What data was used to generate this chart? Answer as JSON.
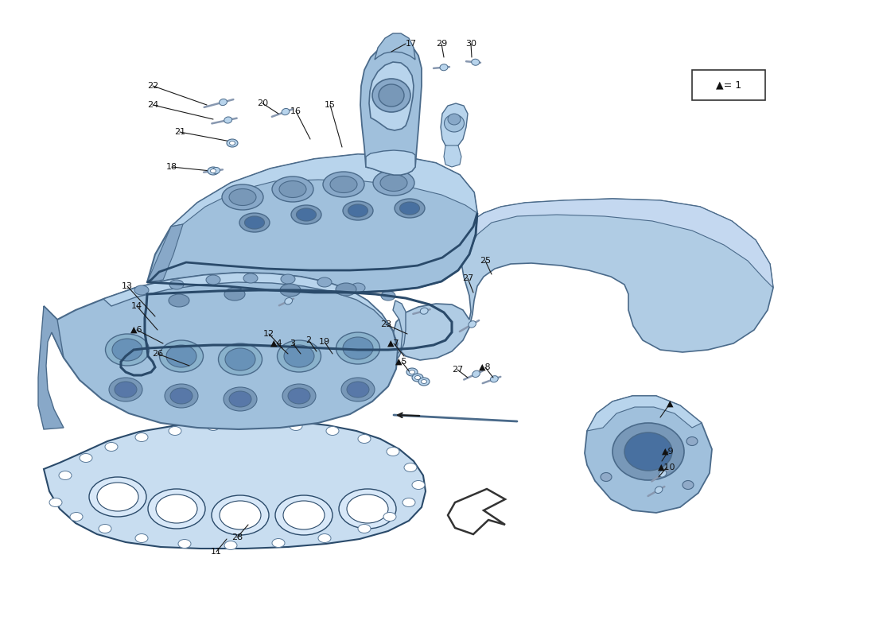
{
  "bg_color": "#ffffff",
  "part_color_light": "#b8d4ec",
  "part_color_mid": "#a0c0dc",
  "part_color_dark": "#88a8c8",
  "part_color_shadow": "#7898b8",
  "edge_color": "#4a6a8a",
  "edge_color_dark": "#2a4a6a",
  "line_color": "#1a1a1a",
  "text_color": "#111111",
  "gasket_color": "#c8ddf0",
  "shield_color": "#b0cce4",
  "figw": 11.0,
  "figh": 8.0,
  "dpi": 100,
  "xlim": [
    0,
    1100
  ],
  "ylim": [
    0,
    800
  ]
}
